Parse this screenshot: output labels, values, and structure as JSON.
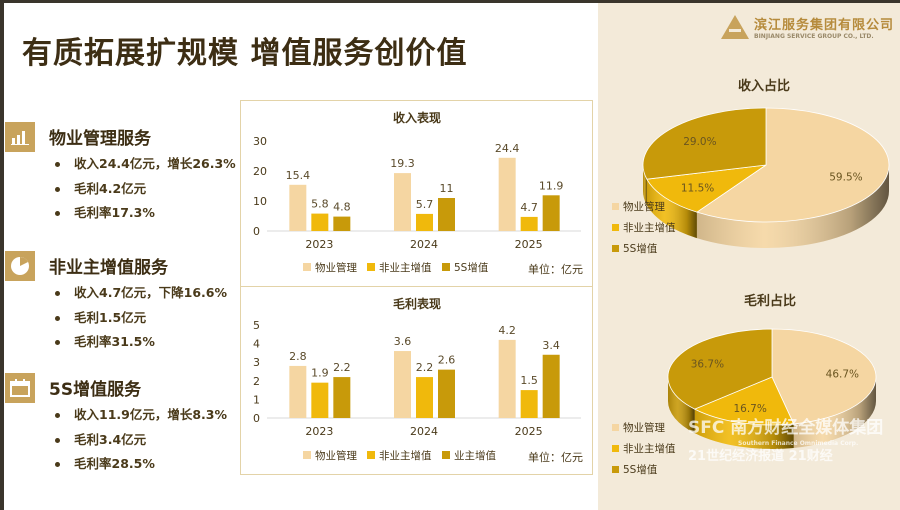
{
  "title": "有质拓展扩规模 增值服务创价值",
  "logo": {
    "cn": "滨江服务集团有限公司",
    "en": "BINJIANG SERVICE GROUP CO., LTD."
  },
  "sections": [
    {
      "icon": "bar-chart-icon",
      "title": "物业管理服务",
      "bullets": [
        "收入24.4亿元，增长26.3%",
        "毛利4.2亿元",
        "毛利率17.3%"
      ]
    },
    {
      "icon": "pie-chart-icon",
      "title": "非业主增值服务",
      "bullets": [
        "收入4.7亿元，下降16.6%",
        "毛利1.5亿元",
        "毛利率31.5%"
      ]
    },
    {
      "icon": "calendar-icon",
      "title": "5S增值服务",
      "bullets": [
        "收入11.9亿元，增长8.3%",
        "毛利3.4亿元",
        "毛利率28.5%"
      ]
    }
  ],
  "colors": {
    "light": "#f5d6a2",
    "yellow": "#f0b90c",
    "dark": "#c89a0a",
    "text": "#4a3a1a"
  },
  "chart_data": [
    {
      "type": "bar",
      "title": "收入表现",
      "categories": [
        "2023",
        "2024",
        "2025"
      ],
      "series": [
        {
          "name": "物业管理",
          "values": [
            15.4,
            19.3,
            24.4
          ]
        },
        {
          "name": "非业主增值",
          "values": [
            5.8,
            5.7,
            4.7
          ]
        },
        {
          "name": "5S增值",
          "values": [
            4.8,
            11.0,
            11.9
          ]
        }
      ],
      "yticks": [
        "0",
        "10",
        "20",
        "30"
      ],
      "ylim": [
        0,
        30
      ],
      "unit": "单位：亿元",
      "legend": "bottom"
    },
    {
      "type": "bar",
      "title": "毛利表现",
      "categories": [
        "2023",
        "2024",
        "2025"
      ],
      "series": [
        {
          "name": "物业管理",
          "values": [
            2.8,
            3.6,
            4.2
          ]
        },
        {
          "name": "非业主增值",
          "values": [
            1.9,
            2.2,
            1.5
          ]
        },
        {
          "name": "业主增值",
          "values": [
            2.2,
            2.6,
            3.4
          ]
        }
      ],
      "yticks": [
        "0",
        "1",
        "2",
        "3",
        "4",
        "5"
      ],
      "ylim": [
        0,
        5
      ],
      "unit": "单位：亿元",
      "legend": "bottom"
    },
    {
      "type": "pie",
      "title": "收入占比",
      "labels": [
        "物业管理",
        "非业主增值",
        "5S增值"
      ],
      "values": [
        59.5,
        11.5,
        29.0
      ],
      "value_labels": [
        "59.5%",
        "11.5%",
        "29.0%"
      ],
      "legend": "bottom-left"
    },
    {
      "type": "pie",
      "title": "毛利占比",
      "labels": [
        "物业管理",
        "非业主增值",
        "5S增值"
      ],
      "values": [
        46.7,
        16.7,
        36.7
      ],
      "value_labels": [
        "46.7%",
        "16.7%",
        "36.7%"
      ],
      "legend": "bottom-left"
    }
  ],
  "watermark": {
    "line1": "SFC 南方财经全媒体集团",
    "line2": "Southern Finance Omnimedia Corp.",
    "line3": "21世纪经济报道  21财经"
  }
}
